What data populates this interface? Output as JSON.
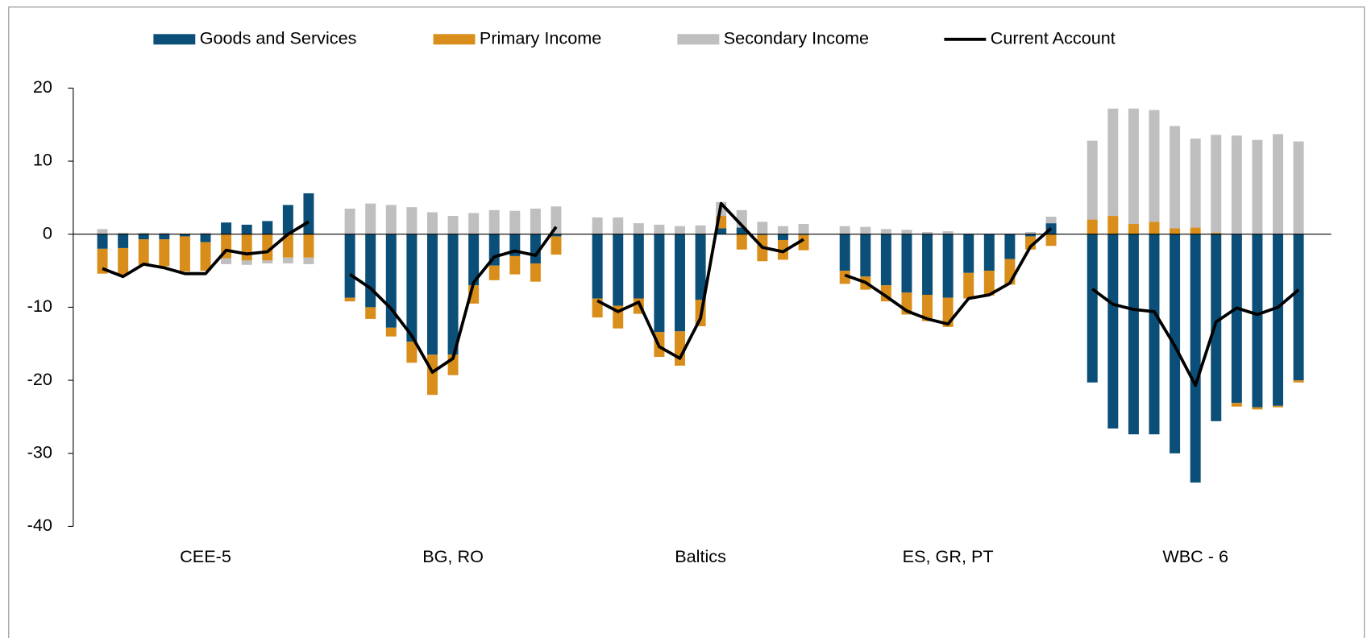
{
  "chart_data": {
    "type": "bar",
    "stacked": true,
    "ylim": [
      -40,
      20
    ],
    "yticks": [
      -40,
      -30,
      -20,
      -10,
      0,
      10,
      20
    ],
    "groups": [
      "CEE-5",
      "BG, RO",
      "Baltics",
      "ES, GR, PT",
      "WBC - 6"
    ],
    "categories": [
      null,
      null,
      null,
      null,
      null,
      null,
      null,
      null,
      null,
      null,
      null,
      null,
      null,
      null,
      null,
      null,
      null,
      null,
      null,
      null,
      null,
      null,
      null,
      null,
      null,
      null,
      null,
      null,
      null,
      null,
      null,
      null,
      null,
      null,
      null,
      null,
      null,
      null,
      null,
      null,
      null,
      null,
      null,
      null,
      null,
      null,
      null,
      null,
      null,
      null,
      null,
      null,
      null,
      null,
      null
    ],
    "series": [
      {
        "name": "Goods and Services",
        "color": "#0b4f78",
        "values": [
          -2.0,
          -1.9,
          -0.7,
          -0.7,
          -0.3,
          -1.1,
          1.6,
          1.3,
          1.8,
          4.0,
          5.6,
          -8.7,
          -10.0,
          -12.8,
          -14.7,
          -16.5,
          -16.5,
          -7.0,
          -4.3,
          -3.0,
          -4.0,
          -0.3,
          -8.8,
          -9.8,
          -8.8,
          -13.4,
          -13.3,
          -9.0,
          0.8,
          0.9,
          -0.1,
          -0.8,
          -0.1,
          -5.0,
          -5.8,
          -7.0,
          -8.0,
          -8.3,
          -8.7,
          -5.3,
          -5.0,
          -3.4,
          -0.3,
          1.5,
          -20.3,
          -26.6,
          -27.4,
          -27.4,
          -30.0,
          -34.0,
          -25.6,
          -23.1,
          -23.7,
          -23.5,
          -20.0
        ]
      },
      {
        "name": "Primary Income",
        "color": "#d98e1b",
        "values": [
          -3.4,
          -3.7,
          -3.5,
          -3.7,
          -4.8,
          -3.9,
          -3.3,
          -3.6,
          -3.6,
          -3.2,
          -3.2,
          -0.5,
          -1.6,
          -1.2,
          -2.9,
          -5.5,
          -2.8,
          -2.5,
          -2.0,
          -2.5,
          -2.5,
          -2.5,
          -2.6,
          -3.1,
          -2.1,
          -3.4,
          -4.7,
          -3.6,
          1.7,
          -2.1,
          -3.6,
          -2.7,
          -2.1,
          -1.8,
          -1.8,
          -2.2,
          -3.0,
          -3.6,
          -4.0,
          -3.5,
          -3.4,
          -3.5,
          -1.8,
          -1.6,
          2.0,
          2.5,
          1.4,
          1.7,
          0.8,
          0.9,
          0.2,
          -0.5,
          -0.3,
          -0.2,
          -0.3
        ]
      },
      {
        "name": "Secondary Income",
        "color": "#bfbfbf",
        "values": [
          0.7,
          0.2,
          0.2,
          0.2,
          0.1,
          0.2,
          -0.8,
          -0.6,
          -0.4,
          -0.8,
          -0.9,
          3.5,
          4.2,
          4.0,
          3.7,
          3.0,
          2.5,
          2.9,
          3.3,
          3.2,
          3.5,
          3.8,
          2.3,
          2.3,
          1.5,
          1.3,
          1.1,
          1.2,
          1.9,
          2.4,
          1.7,
          1.1,
          1.4,
          1.1,
          1.0,
          0.7,
          0.6,
          0.3,
          0.4,
          0.0,
          0.0,
          0.0,
          0.3,
          0.9,
          10.8,
          14.7,
          15.8,
          15.3,
          14.0,
          12.2,
          13.4,
          13.5,
          12.9,
          13.7,
          12.7
        ]
      },
      {
        "name": "Current Account",
        "type": "line",
        "color": "#000000",
        "values": [
          -4.7,
          -5.8,
          -4.1,
          -4.6,
          -5.4,
          -5.4,
          -2.2,
          -2.7,
          -2.4,
          0.0,
          1.7,
          -5.5,
          -7.4,
          -10.2,
          -13.9,
          -18.9,
          -17.0,
          -6.6,
          -3.1,
          -2.3,
          -2.9,
          1.0,
          -9.1,
          -10.6,
          -9.3,
          -15.4,
          -17.0,
          -11.5,
          4.2,
          1.2,
          -1.8,
          -2.4,
          -0.7,
          -5.6,
          -6.6,
          -8.5,
          -10.5,
          -11.6,
          -12.3,
          -8.8,
          -8.3,
          -6.7,
          -1.7,
          0.8,
          -7.5,
          -9.6,
          -10.3,
          -10.6,
          -15.3,
          -20.7,
          -12.0,
          -10.1,
          -11.0,
          -10.0,
          -7.6
        ]
      }
    ]
  }
}
